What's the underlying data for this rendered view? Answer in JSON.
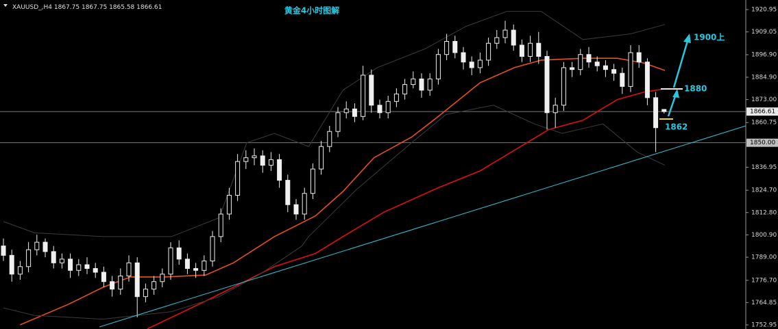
{
  "chart_data": {
    "type": "candlestick",
    "symbol": "XAUUSD_,H4",
    "title": "黄金4小时图解",
    "open": [
      1795,
      1790,
      1780,
      1784,
      1793,
      1797,
      1792,
      1786,
      1788,
      1782,
      1785,
      1783,
      1781,
      1776,
      1772,
      1779,
      1786,
      1768,
      1772,
      1776,
      1780,
      1794,
      1788,
      1783,
      1782,
      1787,
      1800,
      1812,
      1822,
      1840,
      1842,
      1843,
      1838,
      1841,
      1830,
      1817,
      1812,
      1823,
      1836,
      1848,
      1856,
      1866,
      1868,
      1864,
      1886,
      1870,
      1866,
      1872,
      1876,
      1881,
      1884,
      1878,
      1884,
      1897,
      1904,
      1898,
      1893,
      1890,
      1894,
      1903,
      1906,
      1910,
      1902,
      1896,
      1903,
      1896,
      1866,
      1870,
      1890,
      1889,
      1897,
      1893,
      1891,
      1889,
      1887,
      1880,
      1898,
      1893,
      1874,
      1867.75
    ],
    "high": [
      1799,
      1793,
      1787,
      1797,
      1801,
      1799,
      1795,
      1791,
      1791,
      1788,
      1789,
      1786,
      1784,
      1779,
      1783,
      1790,
      1789,
      1775,
      1779,
      1783,
      1797,
      1798,
      1791,
      1786,
      1790,
      1803,
      1815,
      1826,
      1844,
      1846,
      1847,
      1846,
      1845,
      1844,
      1833,
      1820,
      1826,
      1839,
      1851,
      1859,
      1869,
      1872,
      1871,
      1891,
      1889,
      1873,
      1875,
      1879,
      1884,
      1888,
      1887,
      1887,
      1900,
      1908,
      1907,
      1901,
      1896,
      1898,
      1906,
      1910,
      1915,
      1913,
      1905,
      1907,
      1909,
      1899,
      1874,
      1893,
      1893,
      1900,
      1901,
      1896,
      1894,
      1892,
      1890,
      1902,
      1902,
      1895,
      1877,
      1867.75
    ],
    "low": [
      1787,
      1776,
      1777,
      1781,
      1790,
      1789,
      1783,
      1783,
      1778,
      1779,
      1780,
      1778,
      1773,
      1768,
      1769,
      1776,
      1757,
      1765,
      1769,
      1773,
      1777,
      1785,
      1780,
      1778,
      1779,
      1784,
      1797,
      1809,
      1819,
      1836,
      1838,
      1834,
      1835,
      1826,
      1813,
      1809,
      1809,
      1820,
      1833,
      1845,
      1853,
      1863,
      1861,
      1862,
      1866,
      1863,
      1863,
      1869,
      1873,
      1879,
      1874,
      1875,
      1881,
      1894,
      1895,
      1889,
      1886,
      1887,
      1891,
      1900,
      1903,
      1899,
      1893,
      1893,
      1892,
      1857,
      1858,
      1867,
      1885,
      1886,
      1890,
      1888,
      1885,
      1883,
      1876,
      1877,
      1890,
      1870,
      1845,
      1865.58
    ],
    "close": [
      1790,
      1780,
      1784,
      1793,
      1797,
      1792,
      1786,
      1788,
      1782,
      1785,
      1783,
      1781,
      1776,
      1772,
      1779,
      1786,
      1768,
      1772,
      1776,
      1780,
      1794,
      1788,
      1783,
      1782,
      1787,
      1800,
      1812,
      1822,
      1840,
      1842,
      1843,
      1838,
      1841,
      1830,
      1817,
      1812,
      1823,
      1836,
      1848,
      1856,
      1866,
      1868,
      1864,
      1886,
      1870,
      1866,
      1872,
      1876,
      1881,
      1884,
      1878,
      1884,
      1897,
      1904,
      1898,
      1893,
      1890,
      1894,
      1903,
      1906,
      1910,
      1902,
      1896,
      1903,
      1896,
      1866,
      1870,
      1890,
      1889,
      1897,
      1893,
      1891,
      1889,
      1887,
      1880,
      1898,
      1893,
      1874,
      1858,
      1866.61
    ],
    "lines": [
      {
        "color": "#e8501e",
        "x": [
          2.0,
          7.8,
          11.9,
          15.2,
          19.3,
          24.2,
          27.5,
          32.4,
          37.3,
          40.6,
          44.3,
          48.8,
          52.0,
          57.0,
          61.1,
          64.3,
          69.3,
          73.4,
          76.6,
          79.1
        ],
        "values": [
          1753,
          1764,
          1773,
          1778.5,
          1778.5,
          1779.5,
          1786,
          1800,
          1811,
          1824,
          1842,
          1853,
          1864,
          1882,
          1890,
          1894,
          1895,
          1895,
          1892.5,
          1888.5
        ]
      },
      {
        "color": "#e01010",
        "x": [
          17.2,
          24.2,
          32.4,
          37.3,
          40.6,
          45.5,
          52.0,
          57.0,
          61.1,
          65.2,
          69.3,
          73.4,
          76.6,
          79.1
        ],
        "values": [
          1750.8,
          1765.7,
          1784,
          1791,
          1800,
          1813,
          1826,
          1835,
          1846,
          1857,
          1862,
          1873,
          1877,
          1878.7
        ]
      },
      {
        "color": "#3c3c3c",
        "x": [
          0,
          3.7,
          11.9,
          20.1,
          25.8,
          29.1,
          32.4,
          36.5,
          40.6,
          44.7,
          50.4,
          55.3,
          60.2,
          64.3,
          69.3,
          75.0,
          79.1
        ],
        "values": [
          1808,
          1802,
          1800,
          1800,
          1810,
          1850,
          1855,
          1848,
          1878,
          1890,
          1900,
          1912,
          1920,
          1920,
          1905,
          1908,
          1913
        ]
      },
      {
        "color": "#3c3c3c",
        "x": [
          0,
          3.7,
          11.9,
          20.1,
          25.8,
          30.7,
          35.7,
          36.5,
          42.2,
          48.8,
          52.9,
          58.6,
          63.5,
          66.8,
          71.7,
          75.8,
          79.1
        ],
        "values": [
          1762,
          1758,
          1756,
          1760,
          1768,
          1780,
          1795,
          1800,
          1825,
          1850,
          1865,
          1870,
          1860,
          1855,
          1860,
          1845,
          1838
        ]
      }
    ],
    "ylim": [
      1750.76,
      1926.05
    ],
    "yticks": [
      {
        "value": 1920.95,
        "label": "1920.95"
      },
      {
        "value": 1909.05,
        "label": "1909.05"
      },
      {
        "value": 1896.9,
        "label": "1896.90"
      },
      {
        "value": 1884.9,
        "label": "1884.90"
      },
      {
        "value": 1873.0,
        "label": "1873.00"
      },
      {
        "value": 1860.75,
        "label": "1860.75"
      },
      {
        "value": 1836.95,
        "label": "1836.95"
      },
      {
        "value": 1824.7,
        "label": "1824.70"
      },
      {
        "value": 1812.8,
        "label": "1812.80"
      },
      {
        "value": 1800.9,
        "label": "1800.90"
      },
      {
        "value": 1789.0,
        "label": "1789.00"
      },
      {
        "value": 1776.7,
        "label": "1776.70"
      },
      {
        "value": 1764.85,
        "label": "1764.85"
      },
      {
        "value": 1752.95,
        "label": "1752.95"
      }
    ],
    "hlines": [
      {
        "value": 1866.61,
        "label": "1866.61"
      },
      {
        "value": 1850,
        "label": "1850.00"
      }
    ],
    "annotations": [
      "1900上",
      "1880",
      "1862"
    ]
  }
}
